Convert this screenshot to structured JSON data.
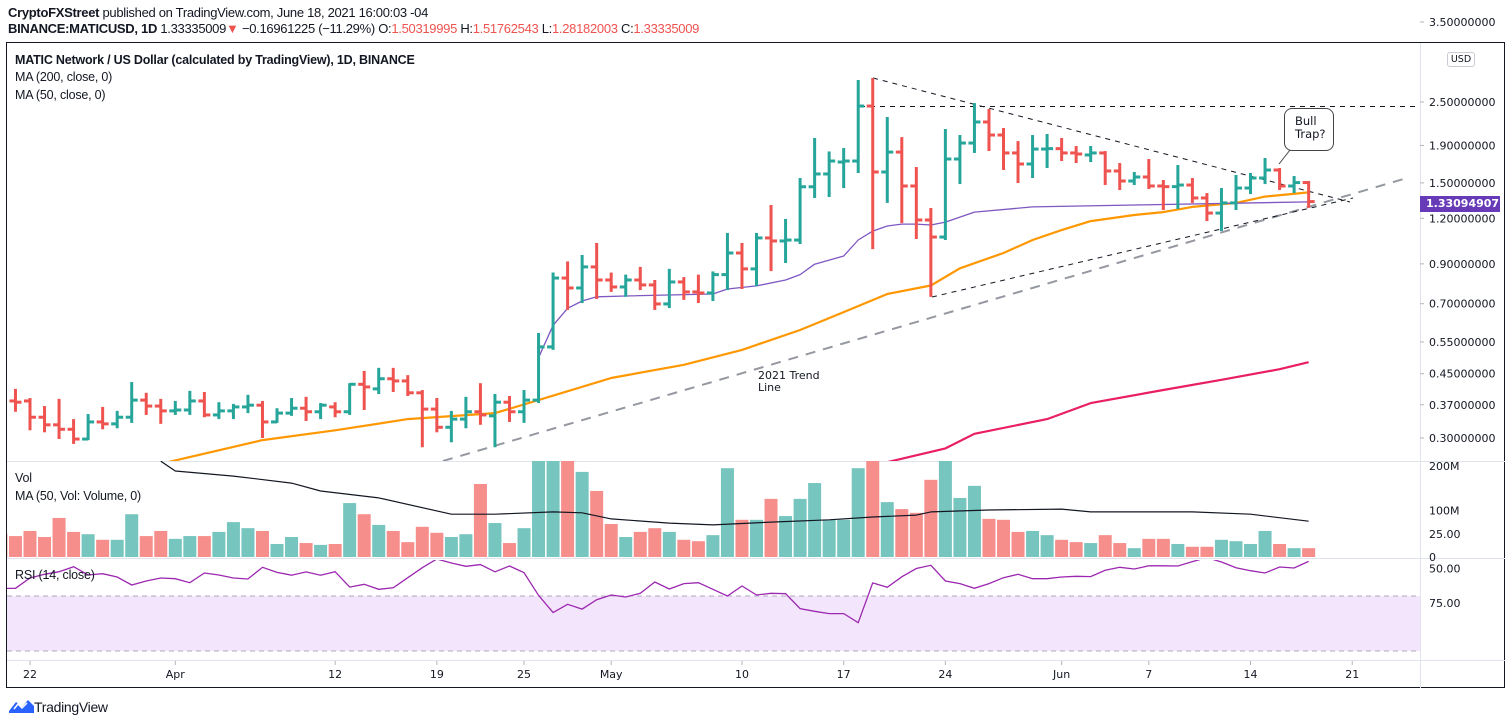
{
  "header": {
    "publisher": "CryptoFXStreet",
    "published_text": "published on TradingView.com, June 18, 2021 16:00:03 -04",
    "symbol": "BINANCE:MATICUSD, 1D",
    "last": "1.33335009",
    "change_icon": "triangle-down-icon",
    "change": "−0.16961225 (−11.29%)",
    "o_label": "O:",
    "o": "1.50319995",
    "h_label": "H:",
    "h": "1.51762543",
    "l_label": "L:",
    "l": "1.28182003",
    "c_label": "C:",
    "c": "1.33335009"
  },
  "legend": {
    "title": "MATIC Network / US Dollar (calculated by TradingView), 1D, BINANCE",
    "ma200": "MA (200, close, 0)",
    "ma50": "MA (50, close, 0)",
    "vol": "Vol",
    "vol_ma": "MA (50, Vol: Volume, 0)",
    "rsi": "RSI (14, close)"
  },
  "price_axis": {
    "currency": "USD",
    "ticks": [
      "3.50000000",
      "2.50000000",
      "1.90000000",
      "1.50000000",
      "1.20000000",
      "0.90000000",
      "0.70000000",
      "0.55000000",
      "0.45000000",
      "0.37000000",
      "0.30000000"
    ],
    "last_label": "1.33094907",
    "scale": "log"
  },
  "volume_axis": {
    "ticks": [
      {
        "label": "200M",
        "value": 200
      },
      {
        "label": "100M",
        "value": 100
      },
      {
        "label": "0",
        "value": 0
      }
    ]
  },
  "rsi_axis": {
    "ticks": [
      {
        "label": "75.00",
        "value": 75
      },
      {
        "label": "50.00",
        "value": 50
      },
      {
        "label": "25.00",
        "value": 25
      }
    ],
    "band": [
      30,
      70
    ]
  },
  "time_axis": {
    "ticks": [
      {
        "label": "22",
        "date": "2021-03-22"
      },
      {
        "label": "Apr",
        "date": "2021-04-01"
      },
      {
        "label": "12",
        "date": "2021-04-12"
      },
      {
        "label": "19",
        "date": "2021-04-19"
      },
      {
        "label": "25",
        "date": "2021-04-25"
      },
      {
        "label": "May",
        "date": "2021-05-01"
      },
      {
        "label": "10",
        "date": "2021-05-10"
      },
      {
        "label": "17",
        "date": "2021-05-17"
      },
      {
        "label": "24",
        "date": "2021-05-24"
      },
      {
        "label": "Jun",
        "date": "2021-06-01"
      },
      {
        "label": "7",
        "date": "2021-06-07"
      },
      {
        "label": "14",
        "date": "2021-06-14"
      },
      {
        "label": "21",
        "date": "2021-06-21"
      }
    ]
  },
  "annotations": {
    "trend_line_1": "2021 Trend",
    "trend_line_2": "Line",
    "callout_1": "Bull",
    "callout_2": "Trap?"
  },
  "footer": {
    "brand": "TradingView",
    "logo_icon": "tradingview-cloud-icon"
  },
  "colors": {
    "up": "#26a69a",
    "down": "#ef5350",
    "vol_up": "#76c5be",
    "vol_down": "#f68f8c",
    "ma_orange": "#ff9800",
    "ma_purple": "#7e57c2",
    "ma_red": "#e91e63",
    "rsi": "#9c27b0",
    "rsi_band": "#f3e5fc",
    "last_label": "#673ab7"
  },
  "chart_data": {
    "type": "ohlc",
    "columns": [
      "date",
      "open",
      "high",
      "low",
      "close",
      "volume_m",
      "rsi"
    ],
    "rows": [
      [
        "2021-03-20",
        0.394,
        0.414,
        0.369,
        0.379,
        50,
        64.5
      ],
      [
        "2021-03-21",
        0.379,
        0.409,
        0.354,
        0.376,
        45,
        64.4
      ],
      [
        "2021-03-22",
        0.379,
        0.386,
        0.315,
        0.342,
        56,
        56.9
      ],
      [
        "2021-03-23",
        0.342,
        0.367,
        0.311,
        0.326,
        43,
        54.2
      ],
      [
        "2021-03-24",
        0.326,
        0.384,
        0.298,
        0.317,
        84,
        52.3
      ],
      [
        "2021-03-25",
        0.317,
        0.338,
        0.289,
        0.298,
        54,
        48.7
      ],
      [
        "2021-03-26",
        0.298,
        0.349,
        0.296,
        0.332,
        49,
        54.7
      ],
      [
        "2021-03-27",
        0.332,
        0.365,
        0.317,
        0.328,
        37,
        53.8
      ],
      [
        "2021-03-28",
        0.328,
        0.356,
        0.319,
        0.342,
        37,
        56.2
      ],
      [
        "2021-03-29",
        0.342,
        0.427,
        0.33,
        0.381,
        92,
        62.0
      ],
      [
        "2021-03-30",
        0.381,
        0.399,
        0.347,
        0.367,
        45,
        59.1
      ],
      [
        "2021-03-31",
        0.367,
        0.384,
        0.328,
        0.356,
        56,
        56.9
      ],
      [
        "2021-04-01",
        0.356,
        0.379,
        0.347,
        0.358,
        39,
        57.4
      ],
      [
        "2021-04-02",
        0.358,
        0.404,
        0.347,
        0.379,
        45,
        60.3
      ],
      [
        "2021-04-03",
        0.379,
        0.401,
        0.342,
        0.347,
        45,
        53.3
      ],
      [
        "2021-04-04",
        0.347,
        0.376,
        0.338,
        0.356,
        54,
        54.7
      ],
      [
        "2021-04-05",
        0.356,
        0.372,
        0.338,
        0.365,
        75,
        56.9
      ],
      [
        "2021-04-06",
        0.365,
        0.394,
        0.351,
        0.369,
        62,
        57.6
      ],
      [
        "2021-04-07",
        0.369,
        0.379,
        0.3,
        0.332,
        56,
        49.1
      ],
      [
        "2021-04-08",
        0.332,
        0.362,
        0.33,
        0.351,
        28,
        52.8
      ],
      [
        "2021-04-09",
        0.351,
        0.386,
        0.345,
        0.362,
        43,
        54.9
      ],
      [
        "2021-04-10",
        0.362,
        0.389,
        0.334,
        0.354,
        30,
        52.5
      ],
      [
        "2021-04-11",
        0.354,
        0.374,
        0.338,
        0.369,
        26,
        54.9
      ],
      [
        "2021-04-12",
        0.365,
        0.376,
        0.342,
        0.354,
        28,
        52.3
      ],
      [
        "2021-04-13",
        0.354,
        0.424,
        0.347,
        0.421,
        116,
        63.5
      ],
      [
        "2021-04-14",
        0.421,
        0.458,
        0.358,
        0.414,
        92,
        61.5
      ],
      [
        "2021-04-15",
        0.409,
        0.467,
        0.396,
        0.436,
        69,
        65.1
      ],
      [
        "2021-04-16",
        0.436,
        0.467,
        0.401,
        0.43,
        56,
        64.0
      ],
      [
        "2021-04-17",
        0.43,
        0.446,
        0.391,
        0.399,
        32,
        56.7
      ],
      [
        "2021-04-18",
        0.399,
        0.406,
        0.283,
        0.36,
        65,
        49.4
      ],
      [
        "2021-04-19",
        0.36,
        0.386,
        0.311,
        0.321,
        52,
        43.1
      ],
      [
        "2021-04-20",
        0.321,
        0.356,
        0.292,
        0.338,
        43,
        46.0
      ],
      [
        "2021-04-21",
        0.338,
        0.389,
        0.319,
        0.354,
        49,
        48.4
      ],
      [
        "2021-04-22",
        0.354,
        0.424,
        0.326,
        0.347,
        157,
        47.2
      ],
      [
        "2021-04-23",
        0.345,
        0.396,
        0.283,
        0.376,
        73,
        52.4
      ],
      [
        "2021-04-24",
        0.376,
        0.391,
        0.332,
        0.354,
        30,
        48.2
      ],
      [
        "2021-04-25",
        0.354,
        0.406,
        0.33,
        0.381,
        62,
        53.0
      ],
      [
        "2021-04-26",
        0.381,
        0.582,
        0.374,
        0.533,
        260,
        69.5
      ],
      [
        "2021-04-27",
        0.533,
        0.852,
        0.523,
        0.823,
        240,
        82.1
      ],
      [
        "2021-04-28",
        0.823,
        0.914,
        0.673,
        0.773,
        215,
        76.0
      ],
      [
        "2021-04-29",
        0.773,
        0.952,
        0.703,
        0.883,
        183,
        79.5
      ],
      [
        "2021-04-30",
        0.883,
        1.027,
        0.721,
        0.813,
        142,
        72.7
      ],
      [
        "2021-05-01",
        0.813,
        0.852,
        0.754,
        0.778,
        71,
        69.3
      ],
      [
        "2021-05-02",
        0.778,
        0.841,
        0.731,
        0.813,
        43,
        70.7
      ],
      [
        "2021-05-03",
        0.813,
        0.883,
        0.763,
        0.788,
        54,
        68.0
      ],
      [
        "2021-05-04",
        0.788,
        0.813,
        0.673,
        0.699,
        62,
        59.8
      ],
      [
        "2021-05-05",
        0.699,
        0.872,
        0.681,
        0.803,
        54,
        64.9
      ],
      [
        "2021-05-06",
        0.803,
        0.828,
        0.717,
        0.754,
        37,
        61.0
      ],
      [
        "2021-05-07",
        0.754,
        0.841,
        0.703,
        0.749,
        34,
        60.3
      ],
      [
        "2021-05-08",
        0.749,
        0.858,
        0.712,
        0.841,
        47,
        65.1
      ],
      [
        "2021-05-09",
        0.841,
        1.094,
        0.763,
        0.964,
        191,
        70.0
      ],
      [
        "2021-05-10",
        0.964,
        1.027,
        0.768,
        0.872,
        80,
        62.7
      ],
      [
        "2021-05-11",
        0.872,
        1.094,
        0.783,
        1.06,
        80,
        69.3
      ],
      [
        "2021-05-12",
        1.06,
        1.305,
        0.86,
        1.04,
        125,
        68.0
      ],
      [
        "2021-05-13",
        1.04,
        1.195,
        0.905,
        1.046,
        88,
        68.3
      ],
      [
        "2021-05-14",
        1.046,
        1.547,
        1.02,
        1.464,
        125,
        79.2
      ],
      [
        "2021-05-15",
        1.464,
        1.991,
        1.364,
        1.587,
        159,
        81.1
      ],
      [
        "2021-05-16",
        1.587,
        1.829,
        1.372,
        1.722,
        80,
        82.8
      ],
      [
        "2021-05-17",
        1.711,
        1.869,
        1.452,
        1.722,
        80,
        82.8
      ],
      [
        "2021-05-18",
        1.722,
        2.871,
        1.597,
        2.436,
        191,
        89.4
      ],
      [
        "2021-05-19",
        2.436,
        2.908,
        0.988,
        1.607,
        230,
        60.5
      ],
      [
        "2021-05-20",
        1.607,
        2.274,
        1.322,
        1.822,
        118,
        63.7
      ],
      [
        "2021-05-21",
        1.822,
        2.003,
        1.164,
        1.471,
        103,
        56.0
      ],
      [
        "2021-05-22",
        1.471,
        1.658,
        1.053,
        1.187,
        95,
        50.0
      ],
      [
        "2021-05-23",
        1.187,
        1.28,
        0.731,
        1.066,
        166,
        47.7
      ],
      [
        "2021-05-24",
        1.066,
        2.107,
        1.046,
        1.744,
        210,
        59.1
      ],
      [
        "2021-05-25",
        1.744,
        2.029,
        1.489,
        1.929,
        127,
        61.0
      ],
      [
        "2021-05-26",
        1.929,
        2.482,
        1.812,
        2.203,
        153,
        64.4
      ],
      [
        "2021-05-27",
        2.203,
        2.392,
        1.834,
        2.029,
        82,
        61.0
      ],
      [
        "2021-05-28",
        2.029,
        2.121,
        1.627,
        1.812,
        80,
        56.7
      ],
      [
        "2021-05-29",
        1.812,
        1.953,
        1.499,
        1.69,
        54,
        54.2
      ],
      [
        "2021-05-30",
        1.69,
        2.029,
        1.547,
        1.857,
        56,
        57.4
      ],
      [
        "2021-05-31",
        1.857,
        2.042,
        1.648,
        1.862,
        47,
        57.4
      ],
      [
        "2021-06-01",
        1.862,
        1.991,
        1.722,
        1.812,
        37,
        56.2
      ],
      [
        "2021-06-02",
        1.812,
        1.893,
        1.7,
        1.8,
        32,
        55.7
      ],
      [
        "2021-06-03",
        1.789,
        1.893,
        1.711,
        1.812,
        30,
        55.9
      ],
      [
        "2021-06-04",
        1.812,
        1.834,
        1.48,
        1.617,
        47,
        51.3
      ],
      [
        "2021-06-05",
        1.617,
        1.7,
        1.434,
        1.518,
        30,
        49.1
      ],
      [
        "2021-06-06",
        1.518,
        1.607,
        1.48,
        1.557,
        19,
        50.4
      ],
      [
        "2021-06-07",
        1.557,
        1.744,
        1.443,
        1.471,
        39,
        48.0
      ],
      [
        "2021-06-08",
        1.471,
        1.528,
        1.264,
        1.465,
        39,
        48.0
      ],
      [
        "2021-06-09",
        1.465,
        1.679,
        1.272,
        1.48,
        28,
        48.2
      ],
      [
        "2021-06-10",
        1.48,
        1.547,
        1.322,
        1.364,
        22,
        45.0
      ],
      [
        "2021-06-11",
        1.364,
        1.407,
        1.179,
        1.24,
        22,
        42.1
      ],
      [
        "2021-06-12",
        1.24,
        1.452,
        1.107,
        1.322,
        37,
        45.3
      ],
      [
        "2021-06-13",
        1.322,
        1.577,
        1.264,
        1.452,
        34,
        49.4
      ],
      [
        "2021-06-14",
        1.452,
        1.597,
        1.398,
        1.547,
        28,
        51.6
      ],
      [
        "2021-06-15",
        1.547,
        1.755,
        1.489,
        1.627,
        56,
        53.3
      ],
      [
        "2021-06-16",
        1.627,
        1.648,
        1.434,
        1.471,
        28,
        48.9
      ],
      [
        "2021-06-17",
        1.471,
        1.567,
        1.407,
        1.503,
        19,
        49.6
      ],
      [
        "2021-06-18",
        1.5032,
        1.5176,
        1.2818,
        1.3334,
        19,
        44.8
      ]
    ],
    "ma_orange": [
      [
        "2021-03-31",
        0.255
      ],
      [
        "2021-04-07",
        0.296
      ],
      [
        "2021-04-12",
        0.315
      ],
      [
        "2021-04-17",
        0.338
      ],
      [
        "2021-04-23",
        0.351
      ],
      [
        "2021-04-26",
        0.381
      ],
      [
        "2021-05-01",
        0.438
      ],
      [
        "2021-05-06",
        0.476
      ],
      [
        "2021-05-10",
        0.523
      ],
      [
        "2021-05-14",
        0.593
      ],
      [
        "2021-05-17",
        0.664
      ],
      [
        "2021-05-20",
        0.744
      ],
      [
        "2021-05-23",
        0.785
      ],
      [
        "2021-05-25",
        0.875
      ],
      [
        "2021-05-28",
        0.964
      ],
      [
        "2021-05-30",
        1.046
      ],
      [
        "2021-06-01",
        1.114
      ],
      [
        "2021-06-03",
        1.179
      ],
      [
        "2021-06-06",
        1.225
      ],
      [
        "2021-06-08",
        1.248
      ],
      [
        "2021-06-10",
        1.289
      ],
      [
        "2021-06-13",
        1.322
      ],
      [
        "2021-06-15",
        1.376
      ],
      [
        "2021-06-18",
        1.413
      ]
    ],
    "ma_purple": [
      [
        "2021-04-26",
        0.498
      ],
      [
        "2021-04-27",
        0.611
      ],
      [
        "2021-04-28",
        0.68
      ],
      [
        "2021-04-29",
        0.712
      ],
      [
        "2021-04-30",
        0.731
      ],
      [
        "2021-05-02",
        0.735
      ],
      [
        "2021-05-08",
        0.744
      ],
      [
        "2021-05-09",
        0.768
      ],
      [
        "2021-05-11",
        0.783
      ],
      [
        "2021-05-13",
        0.813
      ],
      [
        "2021-05-14",
        0.841
      ],
      [
        "2021-05-15",
        0.898
      ],
      [
        "2021-05-17",
        0.946
      ],
      [
        "2021-05-18",
        1.046
      ],
      [
        "2021-05-19",
        1.107
      ],
      [
        "2021-05-20",
        1.143
      ],
      [
        "2021-05-21",
        1.157
      ],
      [
        "2021-05-22",
        1.157
      ],
      [
        "2021-05-23",
        1.15
      ],
      [
        "2021-05-24",
        1.171
      ],
      [
        "2021-05-26",
        1.248
      ],
      [
        "2021-05-30",
        1.289
      ],
      [
        "2021-06-06",
        1.305
      ],
      [
        "2021-06-18",
        1.331
      ]
    ],
    "ma_red": [
      [
        "2021-05-19",
        0.252
      ],
      [
        "2021-05-24",
        0.281
      ],
      [
        "2021-05-26",
        0.308
      ],
      [
        "2021-05-31",
        0.338
      ],
      [
        "2021-06-03",
        0.374
      ],
      [
        "2021-06-08",
        0.406
      ],
      [
        "2021-06-12",
        0.433
      ],
      [
        "2021-06-16",
        0.463
      ],
      [
        "2021-06-18",
        0.484
      ]
    ],
    "vol_ma": [
      [
        "2021-03-31",
        206
      ],
      [
        "2021-04-01",
        185
      ],
      [
        "2021-04-05",
        174
      ],
      [
        "2021-04-09",
        159
      ],
      [
        "2021-04-11",
        142
      ],
      [
        "2021-04-15",
        127
      ],
      [
        "2021-04-20",
        92
      ],
      [
        "2021-04-23",
        92
      ],
      [
        "2021-04-27",
        97
      ],
      [
        "2021-04-29",
        95
      ],
      [
        "2021-05-01",
        82
      ],
      [
        "2021-05-05",
        73
      ],
      [
        "2021-05-08",
        69
      ],
      [
        "2021-05-12",
        75
      ],
      [
        "2021-05-16",
        80
      ],
      [
        "2021-05-19",
        86
      ],
      [
        "2021-05-22",
        90
      ],
      [
        "2021-05-23",
        97
      ],
      [
        "2021-05-27",
        101
      ],
      [
        "2021-06-01",
        103
      ],
      [
        "2021-06-03",
        97
      ],
      [
        "2021-06-10",
        97
      ],
      [
        "2021-06-14",
        92
      ],
      [
        "2021-06-18",
        77
      ]
    ]
  }
}
